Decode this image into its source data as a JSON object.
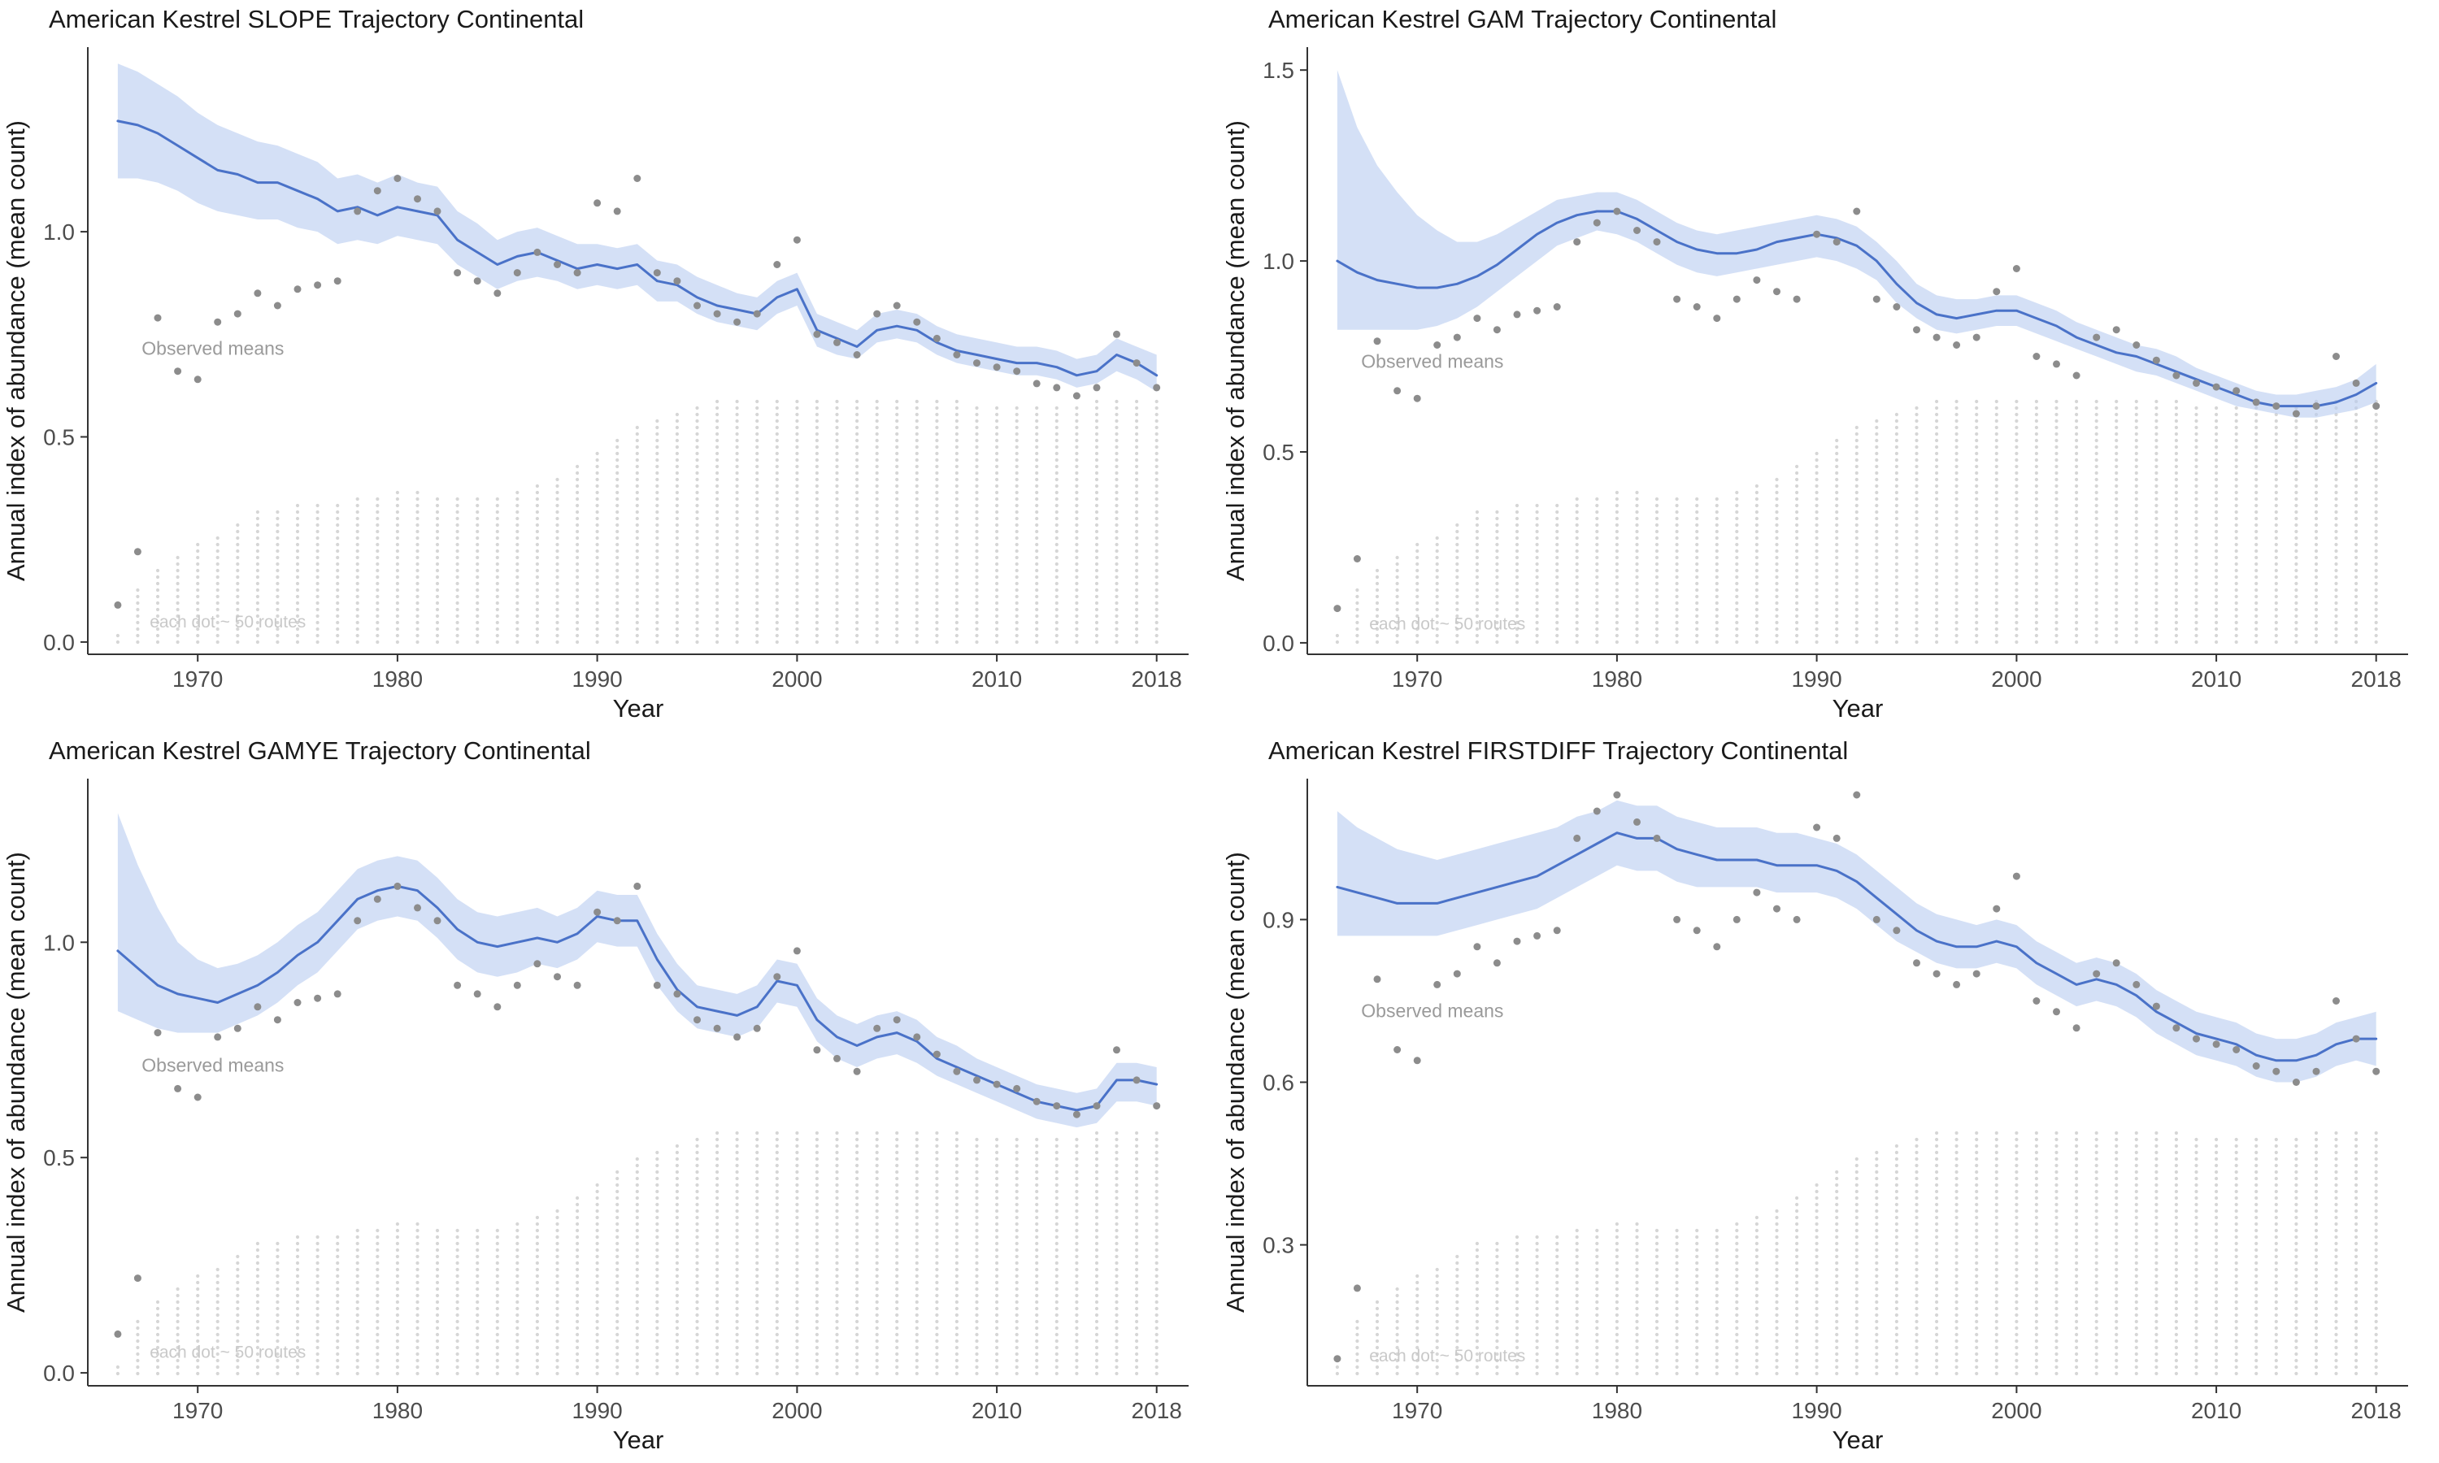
{
  "colors": {
    "background": "#ffffff",
    "trend_line": "#4a72c8",
    "ribbon": "#b8ccf0",
    "observed_dot": "#8c8c8c",
    "route_dot": "#d6d6d6",
    "axis_line": "#333333",
    "tick_label": "#4d4d4d",
    "title_text": "#1a1a1a",
    "observed_annotation": "#9a9a9a",
    "routes_annotation": "#c9c9c9"
  },
  "chart_data": {
    "type": "line",
    "shared": {
      "xlabel": "Year",
      "ylabel": "Annual index of abundance (mean count)",
      "x_tick_years": [
        1970,
        1980,
        1990,
        2000,
        2010,
        2018
      ],
      "x_tick_labels": [
        "1970",
        "1980",
        "1990",
        "2000",
        "2010",
        "2018"
      ],
      "xlim": [
        1964.5,
        2019.6
      ],
      "observed_label": "Observed means",
      "routes_label": "each dot ~ 50 routes",
      "years": [
        1966,
        1967,
        1968,
        1969,
        1970,
        1971,
        1972,
        1973,
        1974,
        1975,
        1976,
        1977,
        1978,
        1979,
        1980,
        1981,
        1982,
        1983,
        1984,
        1985,
        1986,
        1987,
        1988,
        1989,
        1990,
        1991,
        1992,
        1993,
        1994,
        1995,
        1996,
        1997,
        1998,
        1999,
        2000,
        2001,
        2002,
        2003,
        2004,
        2005,
        2006,
        2007,
        2008,
        2009,
        2010,
        2011,
        2012,
        2013,
        2014,
        2015,
        2016,
        2017,
        2018
      ],
      "observed_means": [
        0.09,
        0.22,
        0.79,
        0.66,
        0.64,
        0.78,
        0.8,
        0.85,
        0.82,
        0.86,
        0.87,
        0.88,
        1.05,
        1.1,
        1.13,
        1.08,
        1.05,
        0.9,
        0.88,
        0.85,
        0.9,
        0.95,
        0.92,
        0.9,
        1.07,
        1.05,
        1.13,
        0.9,
        0.88,
        0.82,
        0.8,
        0.78,
        0.8,
        0.92,
        0.98,
        0.75,
        0.73,
        0.7,
        0.8,
        0.82,
        0.78,
        0.74,
        0.7,
        0.68,
        0.67,
        0.66,
        0.63,
        0.62,
        0.6,
        0.62,
        0.75,
        0.68,
        0.62
      ],
      "route_dot_counts": [
        2,
        9,
        12,
        14,
        16,
        17,
        19,
        21,
        21,
        22,
        22,
        22,
        23,
        23,
        24,
        24,
        23,
        23,
        23,
        23,
        24,
        25,
        26,
        28,
        30,
        32,
        34,
        35,
        36,
        37,
        38,
        38,
        38,
        38,
        38,
        38,
        38,
        38,
        38,
        38,
        38,
        38,
        38,
        37,
        37,
        37,
        37,
        37,
        37,
        38,
        38,
        38,
        38
      ]
    },
    "panels": [
      {
        "id": "slope",
        "title": "American Kestrel SLOPE Trajectory Continental",
        "ylim": [
          -0.03,
          1.45
        ],
        "y_ticks": [
          0,
          0.5,
          1
        ],
        "y_tick_labels": [
          "0.0",
          "0.5",
          "1.0"
        ],
        "line": [
          1.27,
          1.26,
          1.24,
          1.21,
          1.18,
          1.15,
          1.14,
          1.12,
          1.12,
          1.1,
          1.08,
          1.05,
          1.06,
          1.04,
          1.06,
          1.05,
          1.04,
          0.98,
          0.95,
          0.92,
          0.94,
          0.95,
          0.93,
          0.91,
          0.92,
          0.91,
          0.92,
          0.88,
          0.87,
          0.84,
          0.82,
          0.81,
          0.8,
          0.84,
          0.86,
          0.76,
          0.74,
          0.72,
          0.76,
          0.77,
          0.76,
          0.73,
          0.71,
          0.7,
          0.69,
          0.68,
          0.68,
          0.67,
          0.65,
          0.66,
          0.7,
          0.68,
          0.65
        ],
        "lower": [
          1.13,
          1.13,
          1.12,
          1.1,
          1.07,
          1.05,
          1.04,
          1.03,
          1.03,
          1.01,
          1.0,
          0.97,
          0.98,
          0.97,
          0.99,
          0.98,
          0.97,
          0.92,
          0.89,
          0.86,
          0.88,
          0.89,
          0.88,
          0.86,
          0.87,
          0.86,
          0.87,
          0.83,
          0.83,
          0.8,
          0.78,
          0.77,
          0.76,
          0.8,
          0.82,
          0.72,
          0.7,
          0.69,
          0.73,
          0.74,
          0.73,
          0.7,
          0.68,
          0.67,
          0.66,
          0.65,
          0.65,
          0.64,
          0.62,
          0.63,
          0.66,
          0.64,
          0.61
        ],
        "upper": [
          1.41,
          1.39,
          1.36,
          1.33,
          1.29,
          1.26,
          1.24,
          1.22,
          1.21,
          1.19,
          1.17,
          1.13,
          1.14,
          1.12,
          1.14,
          1.12,
          1.11,
          1.05,
          1.02,
          0.98,
          1.0,
          1.01,
          0.99,
          0.97,
          0.97,
          0.96,
          0.97,
          0.93,
          0.92,
          0.89,
          0.87,
          0.85,
          0.84,
          0.88,
          0.9,
          0.8,
          0.78,
          0.76,
          0.8,
          0.81,
          0.8,
          0.77,
          0.75,
          0.74,
          0.73,
          0.72,
          0.72,
          0.71,
          0.69,
          0.7,
          0.74,
          0.72,
          0.7
        ],
        "ann_observed": {
          "x": 1967.2,
          "y": 0.7
        },
        "ann_routes": {
          "x": 1967.6,
          "y": 0.035
        }
      },
      {
        "id": "gam",
        "title": "American Kestrel GAM Trajectory Continental",
        "ylim": [
          -0.03,
          1.56
        ],
        "y_ticks": [
          0,
          0.5,
          1,
          1.5
        ],
        "y_tick_labels": [
          "0.0",
          "0.5",
          "1.0",
          "1.5"
        ],
        "line": [
          1.0,
          0.97,
          0.95,
          0.94,
          0.93,
          0.93,
          0.94,
          0.96,
          0.99,
          1.03,
          1.07,
          1.1,
          1.12,
          1.13,
          1.13,
          1.11,
          1.08,
          1.05,
          1.03,
          1.02,
          1.02,
          1.03,
          1.05,
          1.06,
          1.07,
          1.06,
          1.04,
          1.0,
          0.94,
          0.89,
          0.86,
          0.85,
          0.86,
          0.87,
          0.87,
          0.85,
          0.83,
          0.8,
          0.78,
          0.76,
          0.75,
          0.73,
          0.71,
          0.69,
          0.67,
          0.65,
          0.63,
          0.62,
          0.62,
          0.62,
          0.63,
          0.65,
          0.68
        ],
        "lower": [
          0.82,
          0.82,
          0.82,
          0.82,
          0.82,
          0.83,
          0.85,
          0.88,
          0.92,
          0.96,
          1.0,
          1.04,
          1.06,
          1.08,
          1.07,
          1.05,
          1.02,
          0.99,
          0.97,
          0.96,
          0.97,
          0.98,
          0.99,
          1.0,
          1.01,
          1.0,
          0.98,
          0.95,
          0.89,
          0.85,
          0.82,
          0.81,
          0.82,
          0.83,
          0.83,
          0.81,
          0.79,
          0.77,
          0.75,
          0.73,
          0.71,
          0.7,
          0.68,
          0.66,
          0.64,
          0.62,
          0.61,
          0.6,
          0.59,
          0.59,
          0.6,
          0.61,
          0.63
        ],
        "upper": [
          1.5,
          1.35,
          1.25,
          1.18,
          1.12,
          1.08,
          1.05,
          1.05,
          1.07,
          1.1,
          1.13,
          1.16,
          1.17,
          1.18,
          1.18,
          1.16,
          1.13,
          1.1,
          1.08,
          1.07,
          1.08,
          1.09,
          1.1,
          1.11,
          1.12,
          1.11,
          1.09,
          1.05,
          1.0,
          0.94,
          0.91,
          0.9,
          0.9,
          0.91,
          0.91,
          0.89,
          0.87,
          0.84,
          0.82,
          0.8,
          0.78,
          0.77,
          0.75,
          0.72,
          0.7,
          0.68,
          0.66,
          0.65,
          0.65,
          0.66,
          0.67,
          0.69,
          0.73
        ],
        "ann_observed": {
          "x": 1967.2,
          "y": 0.72
        },
        "ann_routes": {
          "x": 1967.6,
          "y": 0.035
        }
      },
      {
        "id": "gamye",
        "title": "American Kestrel GAMYE Trajectory Continental",
        "ylim": [
          -0.03,
          1.38
        ],
        "y_ticks": [
          0,
          0.5,
          1
        ],
        "y_tick_labels": [
          "0.0",
          "0.5",
          "1.0"
        ],
        "line": [
          0.98,
          0.94,
          0.9,
          0.88,
          0.87,
          0.86,
          0.88,
          0.9,
          0.93,
          0.97,
          1.0,
          1.05,
          1.1,
          1.12,
          1.13,
          1.12,
          1.08,
          1.03,
          1.0,
          0.99,
          1.0,
          1.01,
          1.0,
          1.02,
          1.06,
          1.05,
          1.05,
          0.96,
          0.89,
          0.85,
          0.84,
          0.83,
          0.85,
          0.91,
          0.9,
          0.82,
          0.78,
          0.76,
          0.78,
          0.79,
          0.77,
          0.73,
          0.71,
          0.69,
          0.67,
          0.65,
          0.63,
          0.62,
          0.61,
          0.62,
          0.68,
          0.68,
          0.67
        ],
        "lower": [
          0.84,
          0.82,
          0.8,
          0.79,
          0.79,
          0.79,
          0.81,
          0.83,
          0.86,
          0.9,
          0.93,
          0.98,
          1.03,
          1.05,
          1.06,
          1.05,
          1.01,
          0.96,
          0.93,
          0.92,
          0.93,
          0.95,
          0.94,
          0.96,
          1.0,
          0.99,
          0.99,
          0.9,
          0.84,
          0.8,
          0.79,
          0.78,
          0.8,
          0.86,
          0.85,
          0.77,
          0.73,
          0.71,
          0.73,
          0.74,
          0.72,
          0.69,
          0.67,
          0.65,
          0.63,
          0.61,
          0.59,
          0.58,
          0.57,
          0.58,
          0.63,
          0.63,
          0.62
        ],
        "upper": [
          1.3,
          1.18,
          1.08,
          1.0,
          0.96,
          0.94,
          0.95,
          0.97,
          1.0,
          1.04,
          1.07,
          1.12,
          1.17,
          1.19,
          1.2,
          1.19,
          1.15,
          1.1,
          1.07,
          1.06,
          1.07,
          1.08,
          1.06,
          1.08,
          1.12,
          1.11,
          1.11,
          1.02,
          0.95,
          0.9,
          0.89,
          0.88,
          0.9,
          0.96,
          0.95,
          0.87,
          0.83,
          0.81,
          0.83,
          0.84,
          0.82,
          0.78,
          0.76,
          0.73,
          0.71,
          0.69,
          0.67,
          0.66,
          0.65,
          0.66,
          0.72,
          0.72,
          0.71
        ],
        "ann_observed": {
          "x": 1967.2,
          "y": 0.7
        },
        "ann_routes": {
          "x": 1967.6,
          "y": 0.035
        }
      },
      {
        "id": "firstdiff",
        "title": "American Kestrel FIRSTDIFF Trajectory Continental",
        "ylim": [
          0.04,
          1.16
        ],
        "y_ticks": [
          0.3,
          0.6,
          0.9
        ],
        "y_tick_labels": [
          "0.3",
          "0.6",
          "0.9"
        ],
        "line": [
          0.96,
          0.95,
          0.94,
          0.93,
          0.93,
          0.93,
          0.94,
          0.95,
          0.96,
          0.97,
          0.98,
          1.0,
          1.02,
          1.04,
          1.06,
          1.05,
          1.05,
          1.03,
          1.02,
          1.01,
          1.01,
          1.01,
          1.0,
          1.0,
          1.0,
          0.99,
          0.97,
          0.94,
          0.91,
          0.88,
          0.86,
          0.85,
          0.85,
          0.86,
          0.85,
          0.82,
          0.8,
          0.78,
          0.79,
          0.78,
          0.76,
          0.73,
          0.71,
          0.69,
          0.68,
          0.67,
          0.65,
          0.64,
          0.64,
          0.65,
          0.67,
          0.68,
          0.68
        ],
        "lower": [
          0.87,
          0.87,
          0.87,
          0.87,
          0.87,
          0.87,
          0.88,
          0.89,
          0.9,
          0.91,
          0.92,
          0.94,
          0.96,
          0.98,
          1.0,
          0.99,
          0.99,
          0.97,
          0.96,
          0.96,
          0.96,
          0.96,
          0.95,
          0.95,
          0.95,
          0.94,
          0.92,
          0.89,
          0.86,
          0.84,
          0.82,
          0.81,
          0.81,
          0.82,
          0.81,
          0.78,
          0.76,
          0.74,
          0.75,
          0.74,
          0.72,
          0.69,
          0.67,
          0.65,
          0.64,
          0.63,
          0.61,
          0.6,
          0.6,
          0.61,
          0.63,
          0.64,
          0.63
        ],
        "upper": [
          1.1,
          1.07,
          1.05,
          1.03,
          1.02,
          1.01,
          1.02,
          1.03,
          1.04,
          1.05,
          1.06,
          1.07,
          1.09,
          1.1,
          1.12,
          1.11,
          1.11,
          1.09,
          1.08,
          1.07,
          1.07,
          1.07,
          1.06,
          1.06,
          1.05,
          1.04,
          1.02,
          0.99,
          0.96,
          0.93,
          0.91,
          0.9,
          0.89,
          0.9,
          0.89,
          0.86,
          0.84,
          0.82,
          0.83,
          0.82,
          0.8,
          0.77,
          0.75,
          0.73,
          0.72,
          0.71,
          0.69,
          0.68,
          0.68,
          0.69,
          0.71,
          0.72,
          0.73
        ],
        "ann_observed": {
          "x": 1967.2,
          "y": 0.72
        },
        "ann_routes": {
          "x": 1967.6,
          "y": 0.085
        }
      }
    ]
  }
}
